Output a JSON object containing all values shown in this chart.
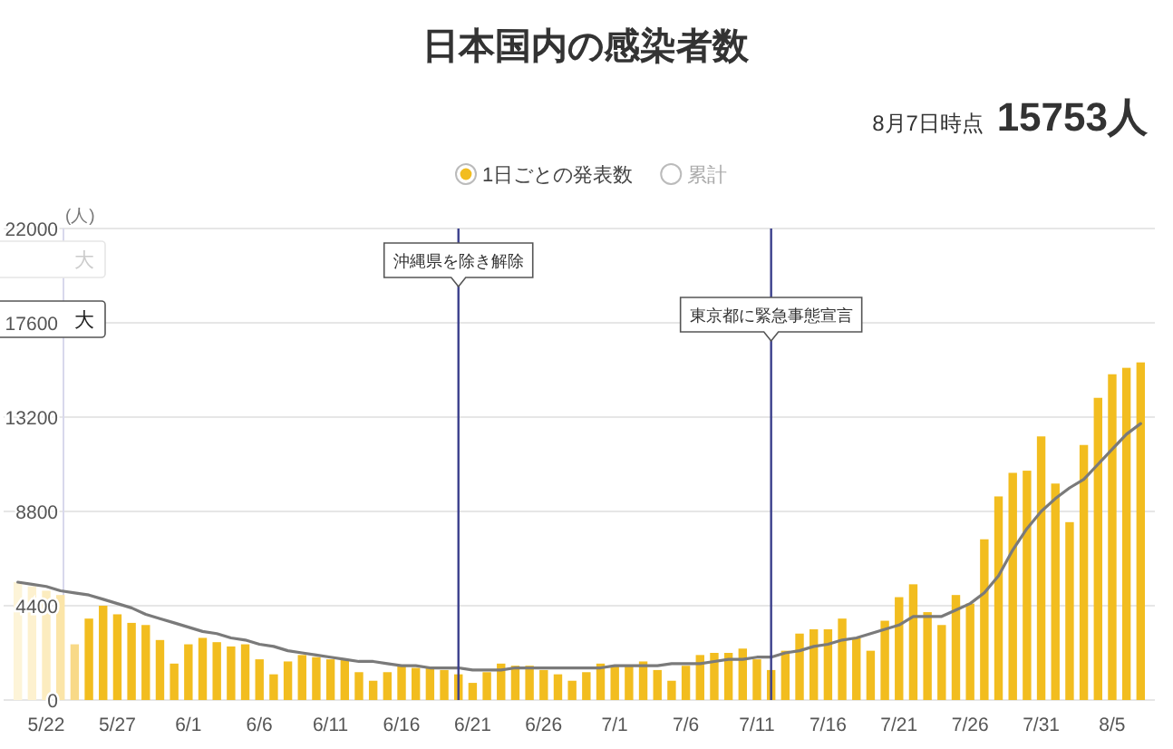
{
  "chart_data": {
    "type": "bar",
    "title": "日本国内の感染者数",
    "subtitle": "8月7日時点 **15753人**",
    "ylabel": "(人)",
    "x": [
      "--05-20",
      "--05-21",
      "--05-22",
      "--05-23",
      "--05-24",
      "--05-25",
      "--05-26",
      "--05-27",
      "--05-28",
      "--05-29",
      "--05-30",
      "--05-31",
      "--06-01",
      "--06-02",
      "--06-03",
      "--06-04",
      "--06-05",
      "--06-06",
      "--06-07",
      "--06-08",
      "--06-09",
      "--06-10",
      "--06-11",
      "--06-12",
      "--06-13",
      "--06-14",
      "--06-15",
      "--06-16",
      "--06-17",
      "--06-18",
      "--06-19",
      "--06-20",
      "--06-21",
      "--06-22",
      "--06-23",
      "--06-24",
      "--06-25",
      "--06-26",
      "--06-27",
      "--06-28",
      "--06-29",
      "--06-30",
      "--07-01",
      "--07-02",
      "--07-03",
      "--07-04",
      "--07-05",
      "--07-06",
      "--07-07",
      "--07-08",
      "--07-09",
      "--07-10",
      "--07-11",
      "--07-12",
      "--07-13",
      "--07-14",
      "--07-15",
      "--07-16",
      "--07-17",
      "--07-18",
      "--07-19",
      "--07-20",
      "--07-21",
      "--07-22",
      "--07-23",
      "--07-24",
      "--07-25",
      "--07-26",
      "--07-27",
      "--07-28",
      "--07-29",
      "--07-30",
      "--07-31",
      "--08-01",
      "--08-02",
      "--08-03",
      "--08-04",
      "--08-05",
      "--08-06",
      "--08-07"
    ],
    "xticks": [
      {
        "value": "--05-22",
        "label": "5/22"
      },
      {
        "value": "--05-27",
        "label": "5/27"
      },
      {
        "value": "--06-01",
        "label": "6/1"
      },
      {
        "value": "--06-06",
        "label": "6/6"
      },
      {
        "value": "--06-11",
        "label": "6/11"
      },
      {
        "value": "--06-16",
        "label": "6/16"
      },
      {
        "value": "--06-21",
        "label": "6/21"
      },
      {
        "value": "--06-26",
        "label": "6/26"
      },
      {
        "value": "--07-01",
        "label": "7/1"
      },
      {
        "value": "--07-06",
        "label": "7/6"
      },
      {
        "value": "--07-11",
        "label": "7/11"
      },
      {
        "value": "--07-16",
        "label": "7/16"
      },
      {
        "value": "--07-21",
        "label": "7/21"
      },
      {
        "value": "--07-26",
        "label": "7/26"
      },
      {
        "value": "--07-31",
        "label": "7/31"
      },
      {
        "value": "--08-05",
        "label": "8/5"
      }
    ],
    "xlim": [
      "--05-19",
      "--08-08"
    ],
    "ylim": [
      0,
      22000
    ],
    "yticks": [
      0,
      4400,
      8800,
      13200,
      17600,
      22000
    ],
    "grid": "y",
    "legend": "top",
    "marker": "none",
    "series": [
      {
        "name": "1日ごとの発表数",
        "color": "#f2bd1f",
        "colors": [
          "#fdf4d8",
          "#fdf1cf",
          "#fcecbf",
          "#fbe5a8",
          "#f8d987",
          "#f2bd1f",
          "#f2bd1f",
          "#f2bd1f",
          "#f2bd1f",
          "#f2bd1f",
          "#f2bd1f",
          "#f2bd1f",
          "#f2bd1f",
          "#f2bd1f",
          "#f2bd1f",
          "#f2bd1f",
          "#f2bd1f",
          "#f2bd1f",
          "#f2bd1f",
          "#f2bd1f",
          "#f2bd1f",
          "#f2bd1f",
          "#f2bd1f",
          "#f2bd1f",
          "#f2bd1f",
          "#f2bd1f",
          "#f2bd1f",
          "#f2bd1f",
          "#f2bd1f",
          "#f2bd1f",
          "#f2bd1f",
          "#f2bd1f",
          "#f2bd1f",
          "#f2bd1f",
          "#f2bd1f",
          "#f2bd1f",
          "#f2bd1f",
          "#f2bd1f",
          "#f2bd1f",
          "#f2bd1f",
          "#f2bd1f",
          "#f2bd1f",
          "#f2bd1f",
          "#f2bd1f",
          "#f2bd1f",
          "#f2bd1f",
          "#f2bd1f",
          "#f2bd1f",
          "#f2bd1f",
          "#f2bd1f",
          "#f2bd1f",
          "#f2bd1f",
          "#f2bd1f",
          "#f2bd1f",
          "#f2bd1f",
          "#f2bd1f",
          "#f2bd1f",
          "#f2bd1f",
          "#f2bd1f",
          "#f2bd1f",
          "#f2bd1f",
          "#f2bd1f",
          "#f2bd1f",
          "#f2bd1f",
          "#f2bd1f",
          "#f2bd1f",
          "#f2bd1f",
          "#f2bd1f",
          "#f2bd1f",
          "#f2bd1f",
          "#f2bd1f",
          "#f2bd1f",
          "#f2bd1f",
          "#f2bd1f",
          "#f2bd1f",
          "#f2bd1f",
          "#f2bd1f",
          "#f2bd1f",
          "#f2bd1f",
          "#f2bd1f"
        ],
        "values": [
          5500,
          5300,
          5100,
          4900,
          2600,
          3800,
          4400,
          4000,
          3600,
          3500,
          2800,
          1700,
          2600,
          2900,
          2700,
          2500,
          2600,
          1900,
          1200,
          1800,
          2100,
          2000,
          1900,
          1900,
          1300,
          900,
          1300,
          1600,
          1500,
          1500,
          1400,
          1200,
          800,
          1300,
          1700,
          1600,
          1600,
          1400,
          1200,
          900,
          1300,
          1700,
          1600,
          1600,
          1800,
          1400,
          900,
          1600,
          2100,
          2200,
          2200,
          2400,
          1900,
          1400,
          2300,
          3100,
          3300,
          3300,
          3800,
          2900,
          2300,
          3700,
          4800,
          5400,
          4100,
          3500,
          4900,
          4500,
          7500,
          9500,
          10600,
          10700,
          12300,
          10100,
          8300,
          11900,
          14100,
          15200,
          15500,
          15753
        ]
      },
      {
        "type": "line",
        "color": "#7a7a7a",
        "values": [
          5500,
          5400,
          5300,
          5100,
          5000,
          4900,
          4700,
          4500,
          4300,
          4000,
          3800,
          3600,
          3400,
          3200,
          3100,
          2900,
          2800,
          2600,
          2500,
          2300,
          2200,
          2100,
          2000,
          1900,
          1800,
          1800,
          1700,
          1600,
          1600,
          1500,
          1500,
          1500,
          1400,
          1400,
          1400,
          1500,
          1500,
          1500,
          1500,
          1500,
          1500,
          1500,
          1600,
          1600,
          1600,
          1600,
          1700,
          1700,
          1700,
          1800,
          1900,
          1900,
          2000,
          2000,
          2200,
          2300,
          2500,
          2600,
          2800,
          2900,
          3100,
          3300,
          3500,
          3900,
          3900,
          3900,
          4200,
          4500,
          5000,
          5800,
          7000,
          8000,
          8800,
          9400,
          9900,
          10300,
          11000,
          11700,
          12400,
          12900
        ]
      }
    ],
    "ref_lines": [
      {
        "axis": "x",
        "value": "--06-20",
        "label": "沖縄県を除き解除",
        "color": "#3b3f8c"
      },
      {
        "axis": "x",
        "value": "--07-12",
        "label": "東京都に緊急事態宣言",
        "color": "#3b3f8c"
      }
    ],
    "annotations": [
      "累計",
      "大",
      "大"
    ]
  }
}
